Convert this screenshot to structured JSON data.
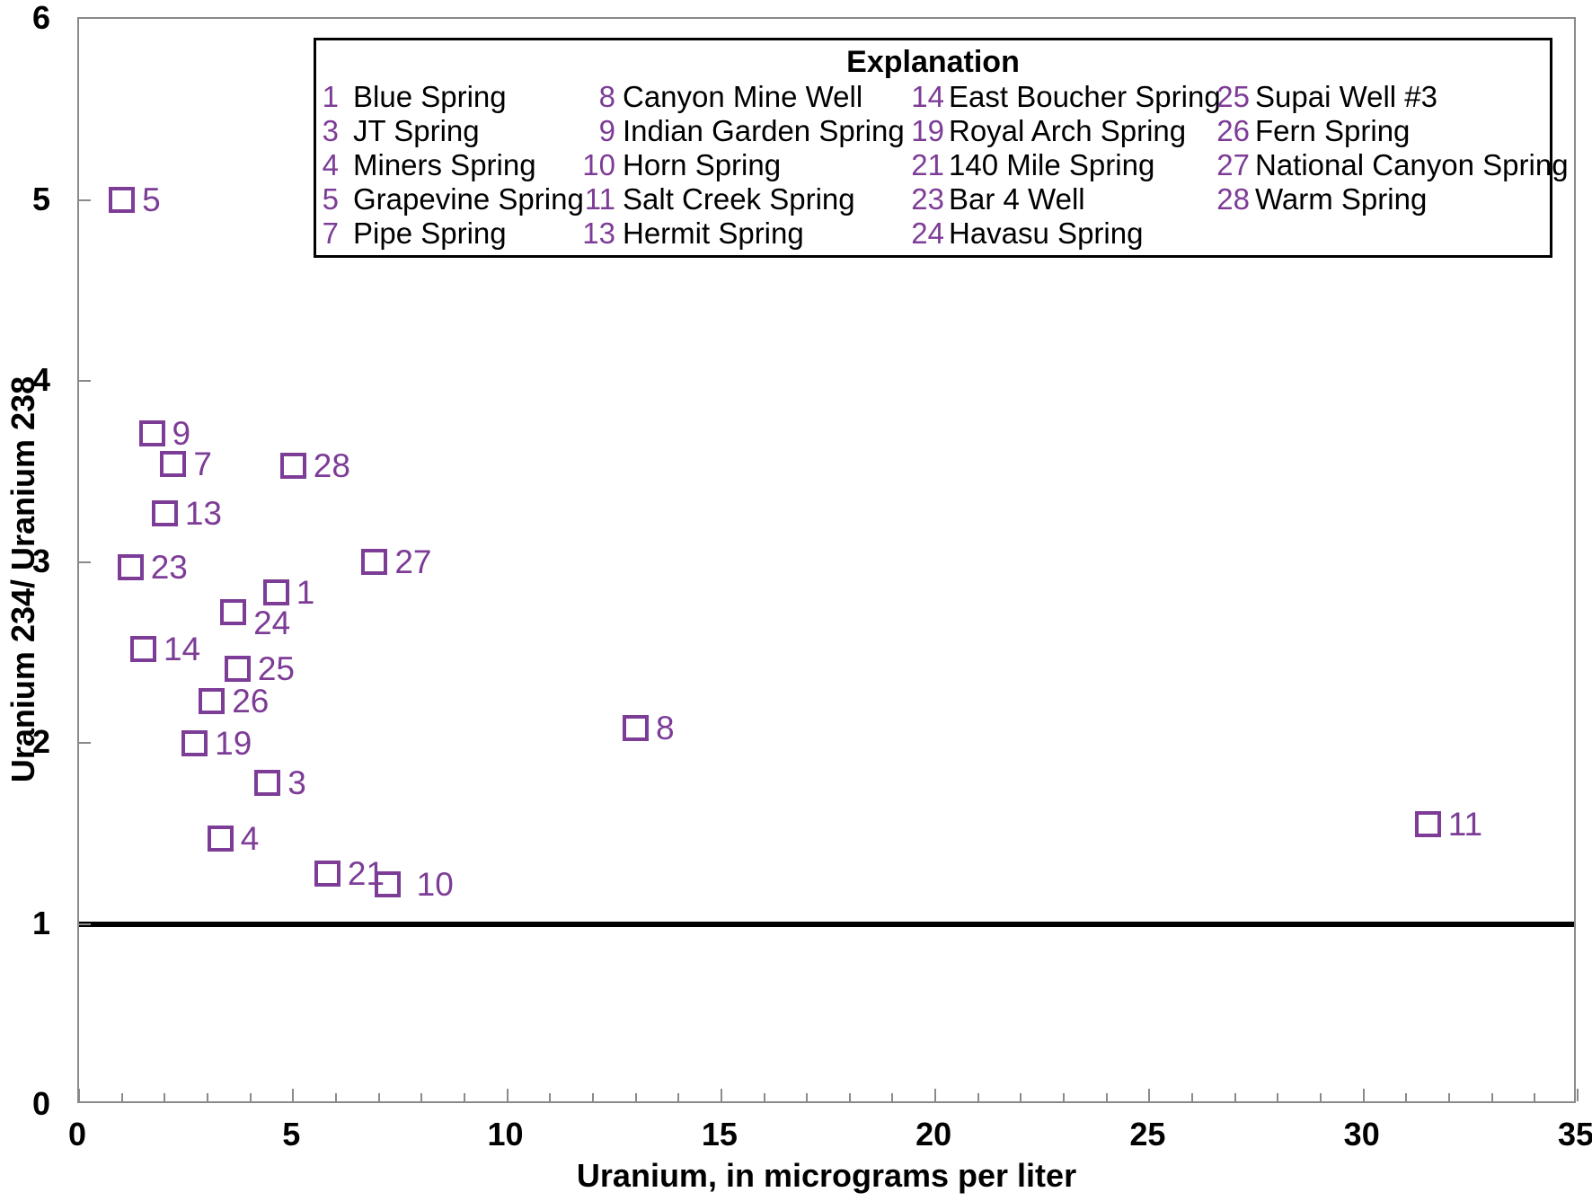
{
  "figure": {
    "background": "#ffffff",
    "accent_purple": "#7d3c96",
    "axis_color": "#8a8a8a",
    "reference_line_color": "#000000"
  },
  "chart_data": {
    "type": "scatter",
    "title": "",
    "xlabel": "Uranium, in micrograms per liter",
    "ylabel": "Uranium 234/ Uranium 238",
    "xlim": [
      0,
      35
    ],
    "ylim": [
      0,
      6
    ],
    "x_major_ticks": [
      0,
      5,
      10,
      15,
      20,
      25,
      30,
      35
    ],
    "x_minor_tick_step": 1,
    "y_major_ticks": [
      0,
      1,
      2,
      3,
      4,
      5,
      6
    ],
    "grid": "off",
    "reference_line_y": 1,
    "marker_style": "open-square",
    "marker_color": "#7d3c96",
    "points": [
      {
        "id": "1",
        "name": "Blue Spring",
        "x": 4.6,
        "y": 2.83
      },
      {
        "id": "3",
        "name": "JT Spring",
        "x": 4.4,
        "y": 1.78
      },
      {
        "id": "4",
        "name": "Miners Spring",
        "x": 3.3,
        "y": 1.47
      },
      {
        "id": "5",
        "name": "Grapevine Spring",
        "x": 1.0,
        "y": 5.0
      },
      {
        "id": "7",
        "name": "Pipe Spring",
        "x": 2.2,
        "y": 3.54
      },
      {
        "id": "8",
        "name": "Canyon Mine Well",
        "x": 13.0,
        "y": 2.08
      },
      {
        "id": "9",
        "name": "Indian Garden Spring",
        "x": 1.7,
        "y": 3.71
      },
      {
        "id": "10",
        "name": "Horn Spring",
        "x": 7.2,
        "y": 1.22,
        "label_dx": 10
      },
      {
        "id": "11",
        "name": "Salt Creek Spring",
        "x": 31.5,
        "y": 1.55
      },
      {
        "id": "13",
        "name": "Hermit Spring",
        "x": 2.0,
        "y": 3.27
      },
      {
        "id": "14",
        "name": "East Boucher Spring",
        "x": 1.5,
        "y": 2.52
      },
      {
        "id": "19",
        "name": "Royal Arch Spring",
        "x": 2.7,
        "y": 2.0
      },
      {
        "id": "21",
        "name": "140 Mile Spring",
        "x": 5.8,
        "y": 1.28
      },
      {
        "id": "23",
        "name": "Bar 4 Well",
        "x": 1.2,
        "y": 2.97
      },
      {
        "id": "24",
        "name": "Havasu Spring",
        "x": 3.6,
        "y": 2.72,
        "label_dy": 12
      },
      {
        "id": "25",
        "name": "Supai Well #3",
        "x": 3.7,
        "y": 2.41
      },
      {
        "id": "26",
        "name": "Fern Spring",
        "x": 3.1,
        "y": 2.23
      },
      {
        "id": "27",
        "name": "National Canyon Spring",
        "x": 6.9,
        "y": 3.0
      },
      {
        "id": "28",
        "name": "Warm Spring",
        "x": 5.0,
        "y": 3.53
      }
    ],
    "legend": {
      "title": "Explanation",
      "position": "top-center-inside",
      "columns": [
        [
          {
            "num": "1",
            "name": "Blue Spring"
          },
          {
            "num": "3",
            "name": "JT Spring"
          },
          {
            "num": "4",
            "name": "Miners Spring"
          },
          {
            "num": "5",
            "name": "Grapevine Spring"
          },
          {
            "num": "7",
            "name": "Pipe Spring"
          }
        ],
        [
          {
            "num": "8",
            "name": "Canyon Mine Well"
          },
          {
            "num": "9",
            "name": "Indian Garden Spring"
          },
          {
            "num": "10",
            "name": "Horn Spring"
          },
          {
            "num": "11",
            "name": "Salt Creek Spring"
          },
          {
            "num": "13",
            "name": "Hermit Spring"
          }
        ],
        [
          {
            "num": "14",
            "name": "East Boucher Spring"
          },
          {
            "num": "19",
            "name": "Royal Arch Spring"
          },
          {
            "num": "21",
            "name": "140 Mile Spring"
          },
          {
            "num": "23",
            "name": "Bar 4 Well"
          },
          {
            "num": "24",
            "name": "Havasu Spring"
          }
        ],
        [
          {
            "num": "25",
            "name": "Supai Well #3"
          },
          {
            "num": "26",
            "name": "Fern Spring"
          },
          {
            "num": "27",
            "name": "National Canyon Spring"
          },
          {
            "num": "28",
            "name": "Warm Spring"
          }
        ]
      ]
    }
  }
}
